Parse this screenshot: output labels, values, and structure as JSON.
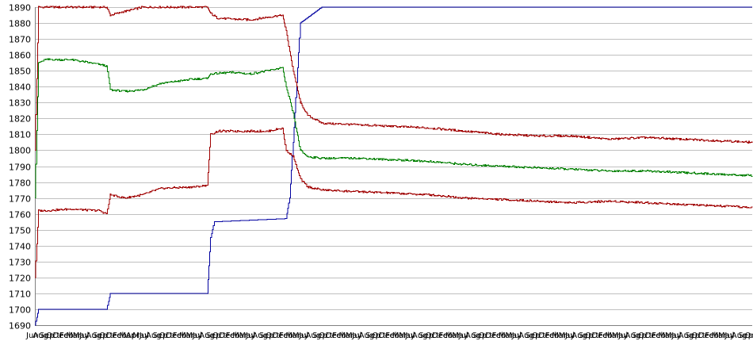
{
  "chart_data": {
    "type": "line",
    "title": "",
    "xlabel": "",
    "ylabel": "",
    "ylim": [
      1690,
      1890
    ],
    "y_ticks": [
      1690,
      1700,
      1710,
      1720,
      1730,
      1740,
      1750,
      1760,
      1770,
      1780,
      1790,
      1800,
      1810,
      1820,
      1830,
      1840,
      1850,
      1860,
      1870,
      1880,
      1890
    ],
    "x_tick_labels": [
      "Jun",
      "Aug",
      "Sep",
      "Oct",
      "Dec",
      "Feb",
      "Mar",
      "May",
      "Jul",
      "Aug",
      "Sep",
      "Oct",
      "Dec",
      "Feb",
      "Mar",
      "Apr",
      "May",
      "Jul",
      "Aug",
      "Sep",
      "Oct",
      "Dec",
      "Feb",
      "Mar",
      "May",
      "Jul",
      "Aug",
      "Sep",
      "Oct",
      "Dec",
      "Feb",
      "Mar",
      "May",
      "Jul",
      "Aug",
      "Sep",
      "Oct",
      "Dec",
      "Feb",
      "Mar",
      "May",
      "Jul",
      "Aug",
      "Sep",
      "Oct",
      "Dec",
      "Feb",
      "Mar",
      "May",
      "Jul",
      "Aug",
      "Sep",
      "Oct",
      "Dec",
      "Feb",
      "Mar",
      "May",
      "Jul",
      "Aug",
      "Sep",
      "Oct",
      "Dec",
      "Feb",
      "Mar",
      "May",
      "Jul",
      "Aug",
      "Sep",
      "Oct",
      "Dec",
      "Feb",
      "Mar",
      "May",
      "Jul",
      "Aug",
      "Sep",
      "Oct",
      "Dec",
      "Feb",
      "Mar",
      "May",
      "Jul",
      "Aug",
      "Sep",
      "Oct",
      "Dec",
      "Feb",
      "Mar",
      "May",
      "Jul",
      "Aug",
      "Sep",
      "Oct",
      "Dec",
      "Feb",
      "Mar",
      "May",
      "Jul",
      "Aug",
      "Sep",
      "Oct",
      "Dec",
      "Feb",
      "Mar",
      "May",
      "Jul",
      "Aug",
      "Sep",
      "Oct"
    ],
    "grid": true,
    "legend": "none",
    "x_points": 200,
    "series": [
      {
        "color": "#0000a0",
        "points": [
          [
            0,
            1690
          ],
          [
            1,
            1700
          ],
          [
            20,
            1700
          ],
          [
            21,
            1710
          ],
          [
            48,
            1710
          ],
          [
            49,
            1745
          ],
          [
            50,
            1755
          ],
          [
            70,
            1757
          ],
          [
            71,
            1770
          ],
          [
            72,
            1805
          ],
          [
            74,
            1880
          ],
          [
            80,
            1890
          ],
          [
            200,
            1890
          ]
        ]
      },
      {
        "color": "#a00000",
        "points": [
          [
            0,
            1800
          ],
          [
            1,
            1890
          ],
          [
            20,
            1890
          ],
          [
            21,
            1885
          ],
          [
            30,
            1890
          ],
          [
            48,
            1890
          ],
          [
            49,
            1886
          ],
          [
            51,
            1883
          ],
          [
            60,
            1882
          ],
          [
            69,
            1885
          ],
          [
            70,
            1875
          ],
          [
            72,
            1850
          ],
          [
            74,
            1830
          ],
          [
            76,
            1822
          ],
          [
            80,
            1817
          ],
          [
            90,
            1816
          ],
          [
            100,
            1815
          ],
          [
            110,
            1814
          ],
          [
            120,
            1812
          ],
          [
            130,
            1810
          ],
          [
            140,
            1809
          ],
          [
            150,
            1809
          ],
          [
            160,
            1807
          ],
          [
            170,
            1808
          ],
          [
            180,
            1807
          ],
          [
            190,
            1806
          ],
          [
            200,
            1805
          ]
        ]
      },
      {
        "color": "#008000",
        "points": [
          [
            0,
            1770
          ],
          [
            1,
            1855
          ],
          [
            3,
            1857
          ],
          [
            10,
            1857
          ],
          [
            18,
            1854
          ],
          [
            20,
            1853
          ],
          [
            21,
            1838
          ],
          [
            25,
            1837
          ],
          [
            30,
            1838
          ],
          [
            35,
            1842
          ],
          [
            45,
            1845
          ],
          [
            48,
            1845
          ],
          [
            49,
            1848
          ],
          [
            55,
            1849
          ],
          [
            60,
            1848
          ],
          [
            65,
            1850
          ],
          [
            69,
            1852
          ],
          [
            70,
            1840
          ],
          [
            72,
            1823
          ],
          [
            74,
            1800
          ],
          [
            76,
            1796
          ],
          [
            80,
            1795
          ],
          [
            90,
            1795
          ],
          [
            100,
            1794
          ],
          [
            110,
            1793
          ],
          [
            120,
            1791
          ],
          [
            130,
            1790
          ],
          [
            140,
            1789
          ],
          [
            150,
            1788
          ],
          [
            160,
            1787
          ],
          [
            170,
            1787
          ],
          [
            180,
            1786
          ],
          [
            190,
            1785
          ],
          [
            200,
            1784
          ]
        ]
      },
      {
        "color": "#a00000",
        "points": [
          [
            0,
            1720
          ],
          [
            1,
            1762
          ],
          [
            3,
            1762
          ],
          [
            10,
            1763
          ],
          [
            18,
            1762
          ],
          [
            20,
            1760
          ],
          [
            21,
            1772
          ],
          [
            25,
            1770
          ],
          [
            30,
            1772
          ],
          [
            35,
            1776
          ],
          [
            45,
            1777
          ],
          [
            48,
            1778
          ],
          [
            49,
            1810
          ],
          [
            51,
            1812
          ],
          [
            60,
            1812
          ],
          [
            65,
            1812
          ],
          [
            69,
            1814
          ],
          [
            70,
            1800
          ],
          [
            72,
            1796
          ],
          [
            74,
            1782
          ],
          [
            76,
            1777
          ],
          [
            80,
            1775
          ],
          [
            90,
            1774
          ],
          [
            100,
            1773
          ],
          [
            110,
            1772
          ],
          [
            120,
            1770
          ],
          [
            130,
            1769
          ],
          [
            140,
            1768
          ],
          [
            150,
            1767
          ],
          [
            160,
            1768
          ],
          [
            170,
            1767
          ],
          [
            180,
            1766
          ],
          [
            190,
            1765
          ],
          [
            200,
            1764
          ]
        ]
      }
    ]
  }
}
